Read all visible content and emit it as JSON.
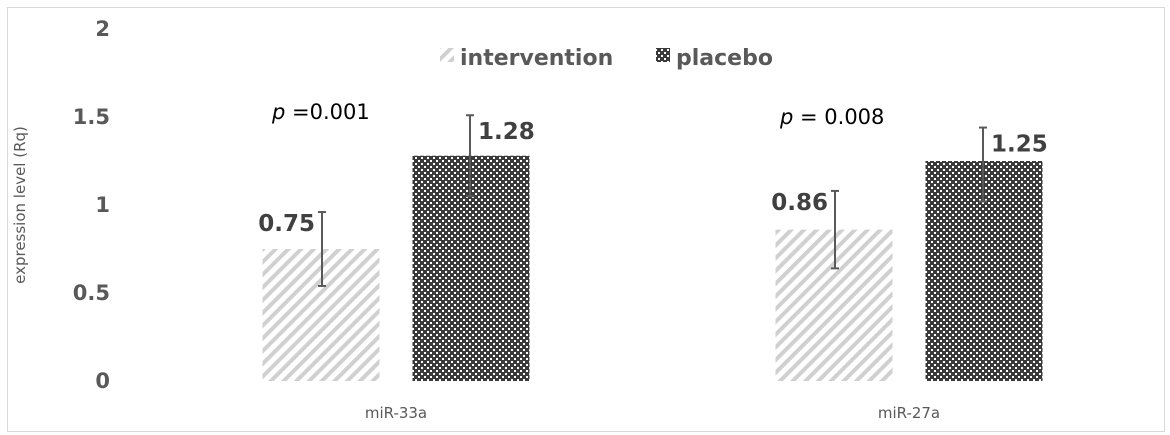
{
  "chart_data": {
    "type": "bar",
    "categories": [
      "miR-33a",
      "miR-27a"
    ],
    "series": [
      {
        "name": "intervention",
        "values": [
          0.75,
          0.86
        ],
        "error_low": [
          0.54,
          0.64
        ],
        "error_high": [
          0.96,
          1.08
        ],
        "pattern": "diagonal-hatch",
        "color": "#d0d0d0"
      },
      {
        "name": "placebo",
        "values": [
          1.28,
          1.25
        ],
        "error_low": [
          1.05,
          1.02
        ],
        "error_high": [
          1.51,
          1.44
        ],
        "pattern": "checker-dots",
        "color": "#404040"
      }
    ],
    "data_labels": [
      [
        "0.75",
        "0.86"
      ],
      [
        "1.28",
        "1.25"
      ]
    ],
    "y_ticks": [
      "0",
      "0.5",
      "1",
      "1.5",
      "2"
    ],
    "ylabel": "expression level (Rq)",
    "xlabel": "",
    "ylim": [
      0,
      2
    ],
    "annotations": [
      {
        "italic": "p",
        "text": " =0.001"
      },
      {
        "italic": "p",
        "text": " = 0.008"
      }
    ],
    "legend_position": "top-center",
    "grid": false
  }
}
